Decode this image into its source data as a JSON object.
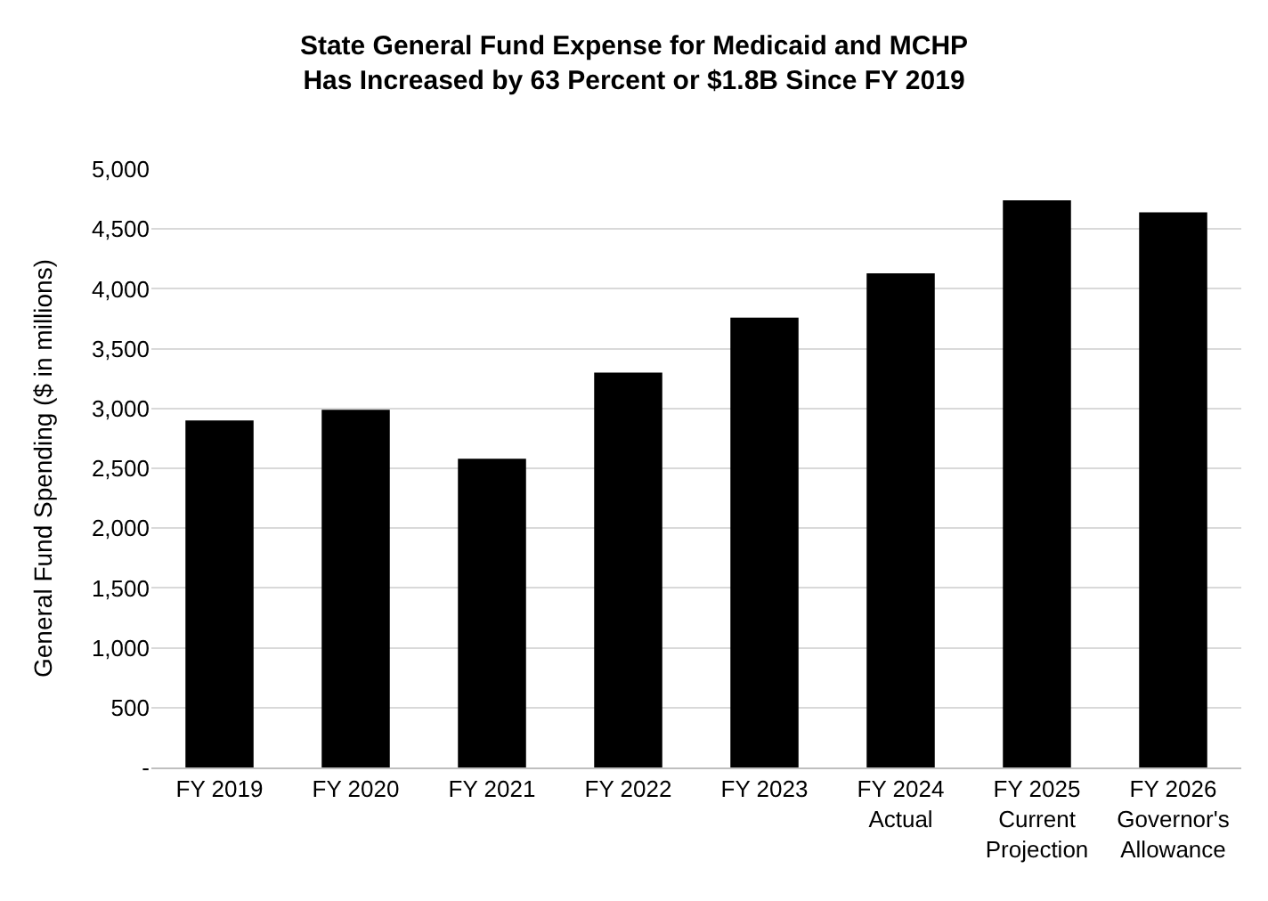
{
  "chart_data": {
    "type": "bar",
    "title": "State General Fund Expense for Medicaid and MCHP\nHas Increased by 63 Percent or $1.8B Since FY 2019",
    "ylabel": "General Fund Spending ($ in millions)",
    "categories": [
      "FY 2019",
      "FY 2020",
      "FY 2021",
      "FY 2022",
      "FY 2023",
      "FY 2024\nActual",
      "FY 2025\nCurrent\nProjection",
      "FY 2026\nGovernor's\nAllowance"
    ],
    "values": [
      2900,
      2990,
      2580,
      3300,
      3760,
      4130,
      4740,
      4640
    ],
    "color": "#000000",
    "ylim": [
      0,
      5000
    ],
    "yticks": [
      {
        "value": 0,
        "label": "-"
      },
      {
        "value": 500,
        "label": "500"
      },
      {
        "value": 1000,
        "label": "1,000"
      },
      {
        "value": 1500,
        "label": "1,500"
      },
      {
        "value": 2000,
        "label": "2,000"
      },
      {
        "value": 2500,
        "label": "2,500"
      },
      {
        "value": 3000,
        "label": "3,000"
      },
      {
        "value": 3500,
        "label": "3,500"
      },
      {
        "value": 4000,
        "label": "4,000"
      },
      {
        "value": 4500,
        "label": "4,500"
      },
      {
        "value": 5000,
        "label": "5,000"
      }
    ],
    "grid": "y",
    "legend": false
  }
}
